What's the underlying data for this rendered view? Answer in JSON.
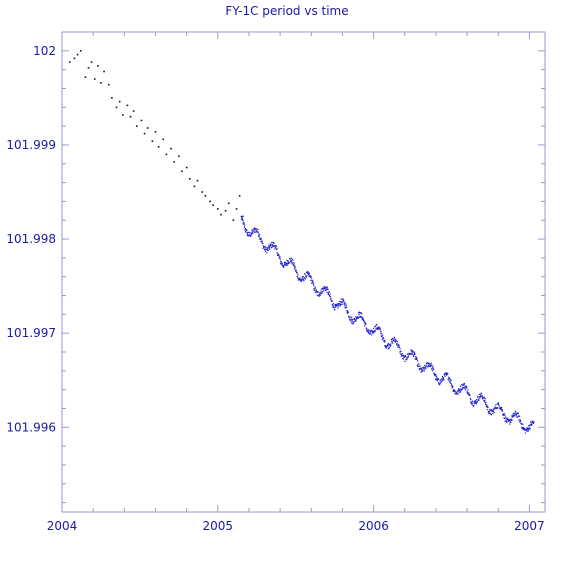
{
  "chart_data": {
    "type": "scatter",
    "title": "FY-1C period vs time",
    "xlabel": "",
    "ylabel": "",
    "xlim": [
      2004.0,
      2007.1
    ],
    "ylim": [
      101.9951,
      102.0002
    ],
    "x_ticks": [
      2004,
      2005,
      2006,
      2007
    ],
    "x_tick_labels": [
      "2004",
      "2005",
      "2006",
      "2007"
    ],
    "y_ticks": [
      101.996,
      101.997,
      101.998,
      101.999,
      102.0
    ],
    "y_tick_labels": [
      "101.996",
      "101.997",
      "101.998",
      "101.999",
      "102"
    ],
    "grid": false,
    "legend": "none",
    "colors": {
      "sparse_points": "#111133",
      "dense_points": "#2222cc",
      "axis": "#9999cc",
      "text": "#1a1aa6"
    },
    "series": [
      {
        "x": [
          2004.05,
          2004.08,
          2004.1,
          2004.12,
          2004.15,
          2004.17,
          2004.19,
          2004.21,
          2004.23,
          2004.25,
          2004.27,
          2004.3,
          2004.32,
          2004.35,
          2004.37,
          2004.39,
          2004.42,
          2004.44,
          2004.46,
          2004.48,
          2004.51,
          2004.53,
          2004.55,
          2004.58,
          2004.6,
          2004.62,
          2004.65,
          2004.67,
          2004.7,
          2004.72,
          2004.75,
          2004.77,
          2004.8,
          2004.82,
          2004.85,
          2004.87,
          2004.9,
          2004.92,
          2004.95,
          2004.97,
          2005.0,
          2005.02,
          2005.05,
          2005.07,
          2005.1,
          2005.12,
          2005.14,
          2005.16
        ],
        "y": [
          101.99988,
          101.99992,
          101.99996,
          102.0,
          101.99972,
          101.99982,
          101.99988,
          101.9997,
          101.99984,
          101.99966,
          101.99978,
          101.99964,
          101.9995,
          101.9994,
          101.99946,
          101.99932,
          101.99942,
          101.9993,
          101.99936,
          101.9992,
          101.99926,
          101.99912,
          101.99918,
          101.99904,
          101.99914,
          101.99898,
          101.99906,
          101.9989,
          101.99896,
          101.99882,
          101.99888,
          101.99872,
          101.99876,
          101.99864,
          101.99856,
          101.99862,
          101.9985,
          101.99846,
          101.9984,
          101.99836,
          101.99832,
          101.99826,
          101.9983,
          101.99838,
          101.9982,
          101.99832,
          101.99846,
          101.99824
        ]
      },
      {
        "x": [
          2005.15,
          2005.25,
          2005.35,
          2005.45,
          2005.55,
          2005.65,
          2005.75,
          2005.85,
          2005.95,
          2006.05,
          2006.15,
          2006.25,
          2006.35,
          2006.45,
          2006.55,
          2006.65,
          2006.75,
          2006.85,
          2006.95,
          2007.03
        ],
        "y": [
          101.99818,
          101.99803,
          101.99789,
          101.99774,
          101.9976,
          101.99747,
          101.99734,
          101.99721,
          101.99709,
          101.99697,
          101.99685,
          101.99673,
          101.99662,
          101.99651,
          101.99641,
          101.99631,
          101.99622,
          101.99613,
          101.99605,
          101.99598
        ],
        "band": 0.00014
      }
    ]
  }
}
